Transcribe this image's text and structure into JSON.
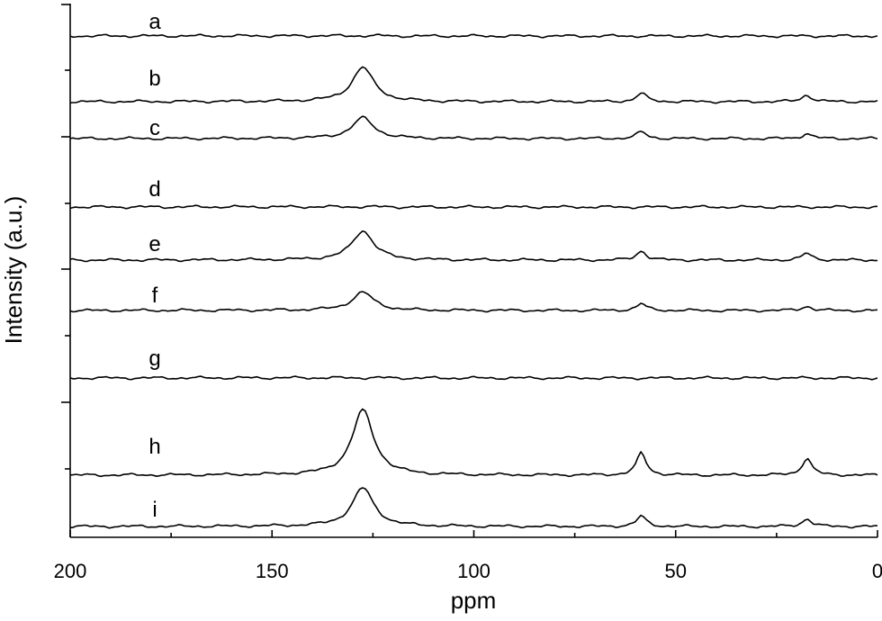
{
  "chart_data": {
    "type": "line",
    "xlabel": "ppm",
    "ylabel": "Intensity (a.u.)",
    "xlim": [
      200,
      0
    ],
    "x_reversed": true,
    "x_ticks": [
      "200",
      "150",
      "100",
      "50",
      "0"
    ],
    "x_tick_values": [
      200,
      150,
      100,
      50,
      0
    ],
    "y_ticks_labeled": false,
    "legend": "labels beside each trace",
    "series": [
      {
        "name": "a",
        "baseline": 3.3,
        "peaks": []
      },
      {
        "name": "b",
        "baseline": 0.3,
        "peaks": [
          {
            "x": 127.5,
            "y": 4.0
          },
          {
            "x": 58.5,
            "y": 1.0
          },
          {
            "x": 17.5,
            "y": 0.8
          }
        ]
      },
      {
        "name": "c",
        "baseline": 0.3,
        "peaks": [
          {
            "x": 127.5,
            "y": 2.4
          },
          {
            "x": 58.5,
            "y": 0.8
          },
          {
            "x": 17.5,
            "y": 0.6
          }
        ]
      },
      {
        "name": "d",
        "baseline": 2.5,
        "peaks": []
      },
      {
        "name": "e",
        "baseline": 0.3,
        "peaks": [
          {
            "x": 127.5,
            "y": 3.4
          },
          {
            "x": 58.5,
            "y": 1.1
          },
          {
            "x": 17.5,
            "y": 0.8
          }
        ]
      },
      {
        "name": "f",
        "baseline": 0.3,
        "peaks": [
          {
            "x": 127.5,
            "y": 2.1
          },
          {
            "x": 58.5,
            "y": 0.8
          },
          {
            "x": 17.5,
            "y": 0.5
          }
        ]
      },
      {
        "name": "g",
        "baseline": 4.6,
        "peaks": []
      },
      {
        "name": "h",
        "baseline": 0.6,
        "peaks": [
          {
            "x": 127.5,
            "y": 7.6
          },
          {
            "x": 58.5,
            "y": 2.6
          },
          {
            "x": 17.5,
            "y": 2.0
          }
        ]
      },
      {
        "name": "i",
        "baseline": 0.3,
        "peaks": [
          {
            "x": 127.5,
            "y": 4.5
          },
          {
            "x": 58.5,
            "y": 1.2
          },
          {
            "x": 17.5,
            "y": 0.9
          }
        ]
      }
    ]
  }
}
